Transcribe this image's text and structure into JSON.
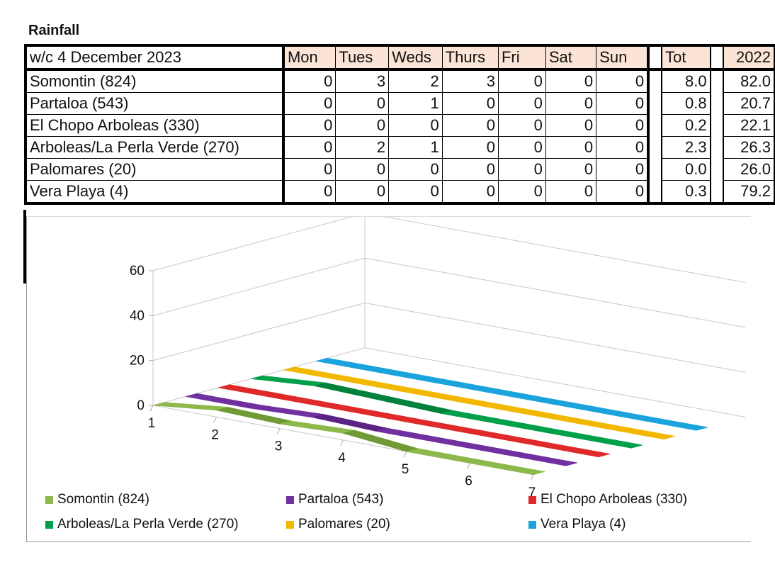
{
  "title": "Rainfall",
  "table": {
    "week_label": "w/c 4 December 2023",
    "days": [
      "Mon",
      "Tues",
      "Weds",
      "Thurs",
      "Fri",
      "Sat",
      "Sun"
    ],
    "tot_label": "Tot",
    "year_label": "2022",
    "rows": [
      {
        "name": "Somontin (824)",
        "values": [
          "0",
          "3",
          "2",
          "3",
          "0",
          "0",
          "0"
        ],
        "tot": "8.0",
        "y2022": "82.0"
      },
      {
        "name": "Partaloa (543)",
        "values": [
          "0",
          "0",
          "1",
          "0",
          "0",
          "0",
          "0"
        ],
        "tot": "0.8",
        "y2022": "20.7"
      },
      {
        "name": "El Chopo Arboleas (330)",
        "values": [
          "0",
          "0",
          "0",
          "0",
          "0",
          "0",
          "0"
        ],
        "tot": "0.2",
        "y2022": "22.1"
      },
      {
        "name": "Arboleas/La Perla Verde (270)",
        "values": [
          "0",
          "2",
          "1",
          "0",
          "0",
          "0",
          "0"
        ],
        "tot": "2.3",
        "y2022": "26.3"
      },
      {
        "name": "Palomares (20)",
        "values": [
          "0",
          "0",
          "0",
          "0",
          "0",
          "0",
          "0"
        ],
        "tot": "0.0",
        "y2022": "26.0"
      },
      {
        "name": "Vera Playa (4)",
        "values": [
          "0",
          "0",
          "0",
          "0",
          "0",
          "0",
          "0"
        ],
        "tot": "0.3",
        "y2022": "79.2"
      }
    ]
  },
  "chart_data": {
    "type": "line",
    "style": "3d-ribbon",
    "x": [
      1,
      2,
      3,
      4,
      5,
      6,
      7
    ],
    "ylim": [
      0,
      60
    ],
    "yticks": [
      0,
      20,
      40,
      60
    ],
    "ytick_labels": [
      "0",
      "20",
      "40",
      "60"
    ],
    "xtick_labels": [
      "1",
      "2",
      "3",
      "4",
      "5",
      "6",
      "7"
    ],
    "grid": true,
    "legend_position": "bottom",
    "series": [
      {
        "name": "Somontin (824)",
        "values": [
          0,
          3,
          2,
          3,
          0,
          0,
          0
        ],
        "color": "#8db84a",
        "shade": "#6f9a35"
      },
      {
        "name": "Partaloa (543)",
        "values": [
          0,
          0,
          1,
          0,
          0,
          0,
          0
        ],
        "color": "#7030a0",
        "shade": "#5a2384"
      },
      {
        "name": "El Chopo Arboleas (330)",
        "values": [
          0,
          0,
          0,
          0,
          0,
          0,
          0
        ],
        "color": "#e02929",
        "shade": "#b71f1f"
      },
      {
        "name": "Arboleas/La Perla Verde (270)",
        "values": [
          0,
          2,
          1,
          0,
          0,
          0,
          0
        ],
        "color": "#00a04a",
        "shade": "#00823b"
      },
      {
        "name": "Palomares (20)",
        "values": [
          0,
          0,
          0,
          0,
          0,
          0,
          0
        ],
        "color": "#f2b800",
        "shade": "#cc9b00"
      },
      {
        "name": "Vera Playa (4)",
        "values": [
          0,
          0,
          0,
          0,
          0,
          0,
          0
        ],
        "color": "#1aa3dc",
        "shade": "#1484b3"
      }
    ]
  }
}
